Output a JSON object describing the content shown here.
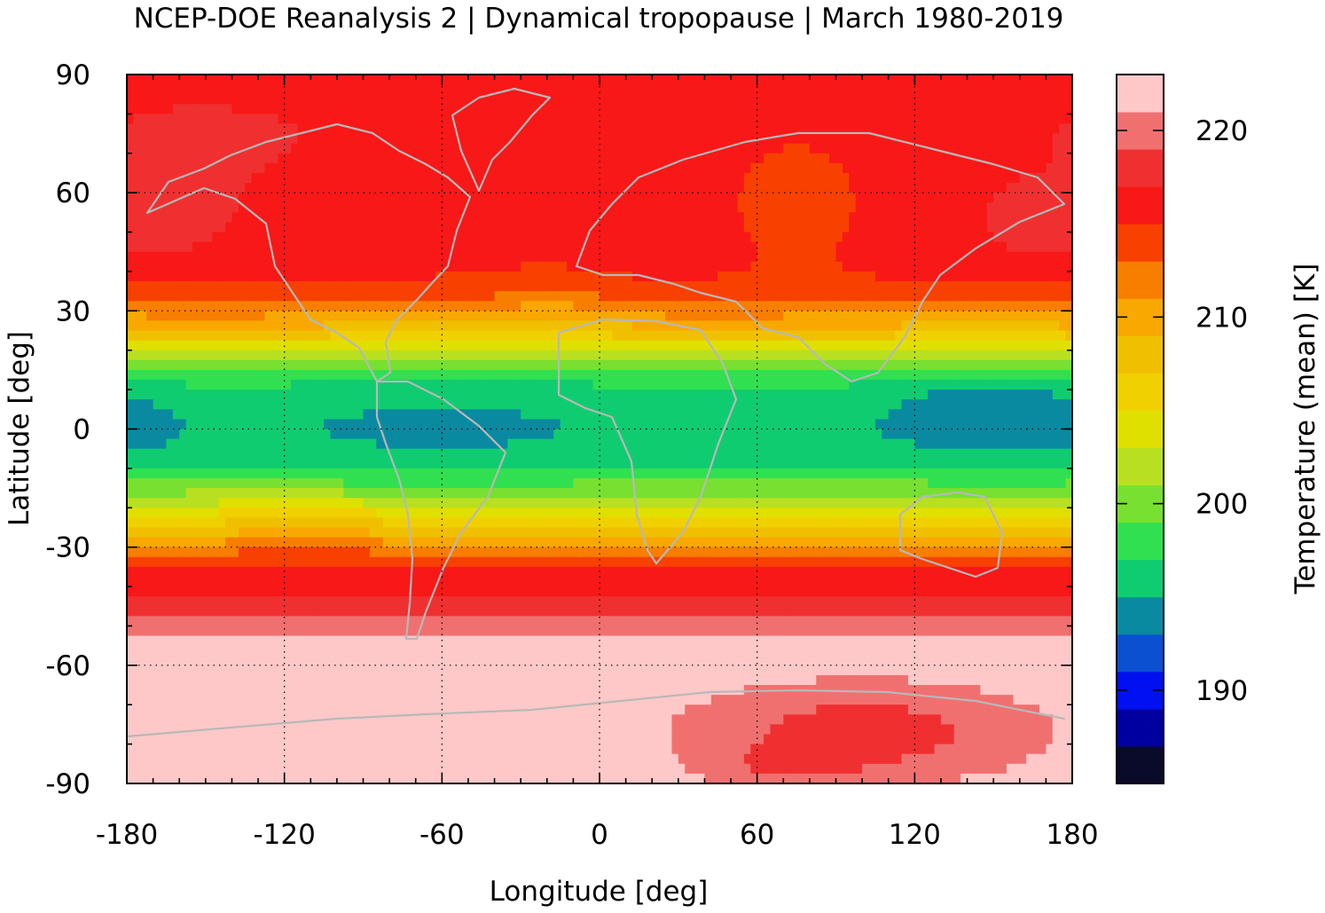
{
  "chart_data": {
    "type": "heatmap",
    "title": "NCEP-DOE Reanalysis 2 | Dynamical tropopause | March 1980-2019",
    "xlabel": "Longitude [deg]",
    "ylabel": "Latitude [deg]",
    "colorbar_label": "Temperature (mean) [K]",
    "xlim": [
      -180,
      180
    ],
    "ylim": [
      -90,
      90
    ],
    "xticks": [
      -180,
      -120,
      -60,
      0,
      60,
      120,
      180
    ],
    "yticks": [
      90,
      60,
      30,
      0,
      -30,
      -60,
      -90
    ],
    "colorbar_range": [
      185,
      223
    ],
    "colorbar_ticks": [
      190,
      200,
      210,
      220
    ],
    "grid": true,
    "palette": [
      "#0a0a2a",
      "#0000a0",
      "#0010f0",
      "#0a50d0",
      "#0a8aa0",
      "#10cc70",
      "#30e050",
      "#78e030",
      "#b8e020",
      "#e0e000",
      "#f0d000",
      "#f0c000",
      "#f8a800",
      "#f87e00",
      "#f84000",
      "#f81818",
      "#f03030",
      "#f07070",
      "#ffc8c8"
    ],
    "lat_profile": [
      {
        "lat": 90,
        "value": 216.6
      },
      {
        "lat": 75,
        "value": 216.6
      },
      {
        "lat": 60,
        "value": 216.2
      },
      {
        "lat": 45,
        "value": 215.8
      },
      {
        "lat": 36,
        "value": 214.8
      },
      {
        "lat": 32,
        "value": 213.5
      },
      {
        "lat": 28,
        "value": 210.5
      },
      {
        "lat": 24,
        "value": 207.5
      },
      {
        "lat": 20,
        "value": 203.5
      },
      {
        "lat": 16,
        "value": 200.5
      },
      {
        "lat": 10,
        "value": 196.5
      },
      {
        "lat": 0,
        "value": 195.5
      },
      {
        "lat": -8,
        "value": 196.5
      },
      {
        "lat": -14,
        "value": 199.5
      },
      {
        "lat": -20,
        "value": 203.5
      },
      {
        "lat": -26,
        "value": 207.5
      },
      {
        "lat": -30,
        "value": 211.5
      },
      {
        "lat": -34,
        "value": 214.5
      },
      {
        "lat": -40,
        "value": 216.5
      },
      {
        "lat": -48,
        "value": 219.5
      },
      {
        "lat": -56,
        "value": 222.5
      },
      {
        "lat": -90,
        "value": 222.5
      }
    ],
    "anomalies": [
      {
        "lon": 75,
        "lat": 60,
        "rlon": 24,
        "rlat": 16,
        "amp": -2.6
      },
      {
        "lon": -160,
        "lat": 55,
        "rlon": 22,
        "rlat": 11,
        "amp": 2.2
      },
      {
        "lon": 165,
        "lat": 52,
        "rlon": 20,
        "rlat": 10,
        "amp": 2.2
      },
      {
        "lon": -20,
        "lat": 32,
        "rlon": 22,
        "rlat": 7,
        "amp": -2.3
      },
      {
        "lon": -150,
        "lat": 72,
        "rlon": 40,
        "rlat": 10,
        "amp": 1.0
      },
      {
        "lon": 145,
        "lat": 5,
        "rlon": 40,
        "rlat": 16,
        "amp": -1.9
      },
      {
        "lon": -60,
        "lat": 0,
        "rlon": 55,
        "rlat": 24,
        "amp": -1.2
      },
      {
        "lon": -175,
        "lat": 0,
        "rlon": 16,
        "rlat": 10,
        "amp": -1.0
      },
      {
        "lon": -110,
        "lat": -25,
        "rlon": 35,
        "rlat": 7,
        "amp": 2.5
      },
      {
        "lon": 100,
        "lat": -77,
        "rlon": 70,
        "rlat": 13,
        "amp": -4.5
      },
      {
        "lon": 70,
        "lat": -86,
        "rlon": 30,
        "rlat": 5,
        "amp": -2.0
      }
    ]
  }
}
